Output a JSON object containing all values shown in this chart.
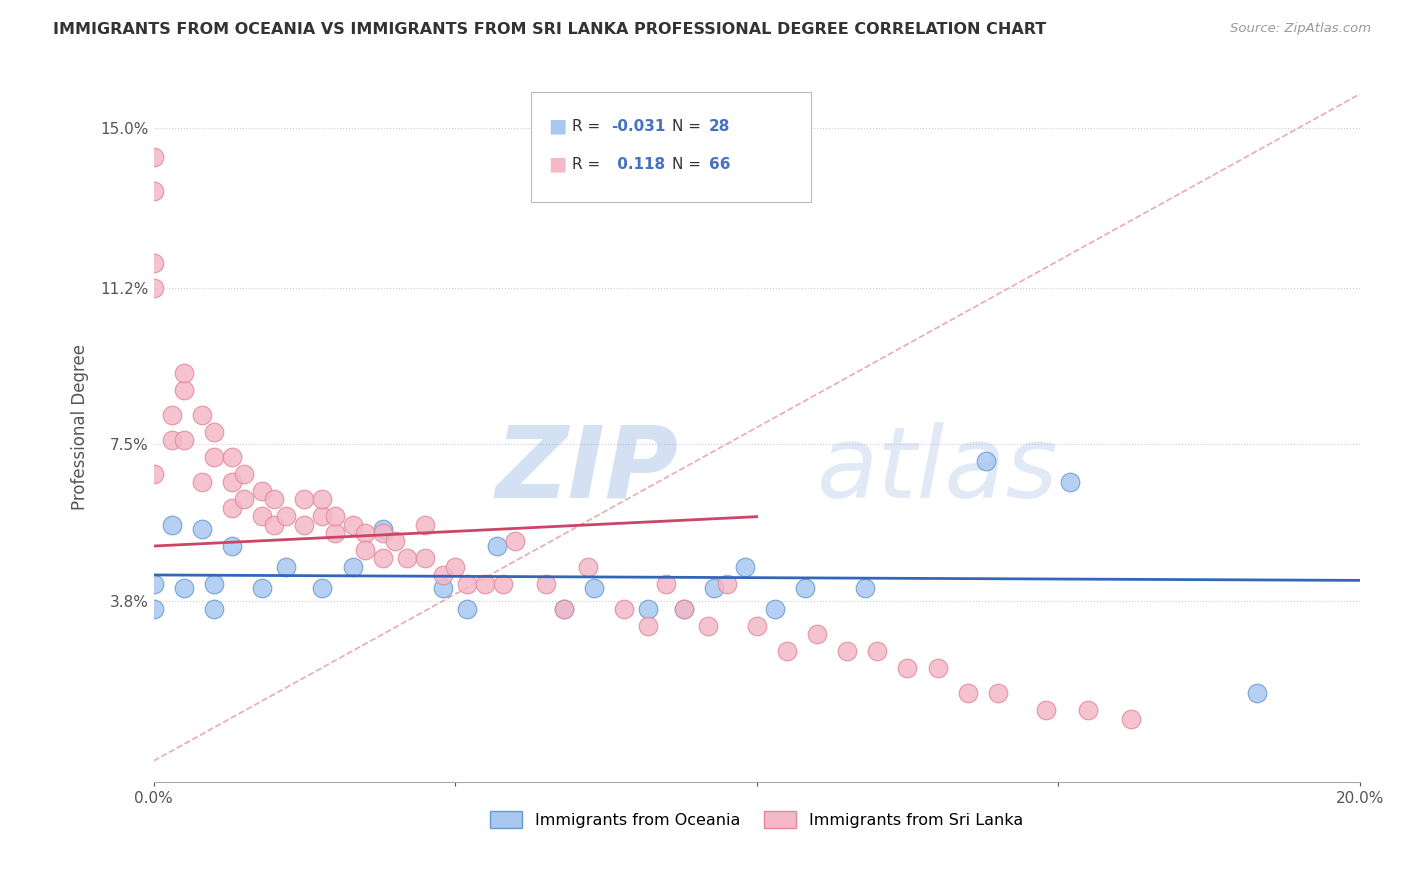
{
  "title": "IMMIGRANTS FROM OCEANIA VS IMMIGRANTS FROM SRI LANKA PROFESSIONAL DEGREE CORRELATION CHART",
  "source": "Source: ZipAtlas.com",
  "ylabel": "Professional Degree",
  "watermark_zip": "ZIP",
  "watermark_atlas": "atlas",
  "xlim": [
    0.0,
    0.2
  ],
  "ylim": [
    -0.005,
    0.163
  ],
  "xticks": [
    0.0,
    0.05,
    0.1,
    0.15,
    0.2
  ],
  "xticklabels": [
    "0.0%",
    "",
    "",
    "",
    "20.0%"
  ],
  "yticks": [
    0.038,
    0.075,
    0.112,
    0.15
  ],
  "yticklabels": [
    "3.8%",
    "7.5%",
    "11.2%",
    "15.0%"
  ],
  "legend_R1": "-0.031",
  "legend_N1": "28",
  "legend_R2": "0.118",
  "legend_N2": "66",
  "color_oceania_fill": "#a8c8f0",
  "color_oceania_edge": "#6699cc",
  "color_sri_lanka_fill": "#f4b8c8",
  "color_sri_lanka_edge": "#e08898",
  "color_line_oceania": "#3366bb",
  "color_line_sri_lanka": "#cc4466",
  "color_dashed_line": "#e8a0b0",
  "oceania_x": [
    0.0,
    0.0,
    0.003,
    0.005,
    0.008,
    0.01,
    0.01,
    0.013,
    0.018,
    0.022,
    0.028,
    0.033,
    0.038,
    0.048,
    0.052,
    0.057,
    0.068,
    0.073,
    0.082,
    0.088,
    0.093,
    0.098,
    0.103,
    0.108,
    0.118,
    0.138,
    0.152,
    0.183
  ],
  "oceania_y": [
    0.042,
    0.036,
    0.056,
    0.041,
    0.055,
    0.042,
    0.036,
    0.051,
    0.041,
    0.046,
    0.041,
    0.046,
    0.055,
    0.041,
    0.036,
    0.051,
    0.036,
    0.041,
    0.036,
    0.036,
    0.041,
    0.046,
    0.036,
    0.041,
    0.041,
    0.071,
    0.066,
    0.016
  ],
  "srilanka_x": [
    0.0,
    0.0,
    0.0,
    0.0,
    0.0,
    0.003,
    0.003,
    0.005,
    0.005,
    0.005,
    0.008,
    0.008,
    0.01,
    0.01,
    0.013,
    0.013,
    0.013,
    0.015,
    0.015,
    0.018,
    0.018,
    0.02,
    0.02,
    0.022,
    0.025,
    0.025,
    0.028,
    0.028,
    0.03,
    0.03,
    0.033,
    0.035,
    0.035,
    0.038,
    0.038,
    0.04,
    0.042,
    0.045,
    0.045,
    0.048,
    0.05,
    0.052,
    0.055,
    0.058,
    0.06,
    0.065,
    0.068,
    0.072,
    0.078,
    0.082,
    0.085,
    0.088,
    0.092,
    0.095,
    0.1,
    0.105,
    0.11,
    0.115,
    0.12,
    0.125,
    0.13,
    0.135,
    0.14,
    0.148,
    0.155,
    0.162
  ],
  "srilanka_y": [
    0.135,
    0.143,
    0.112,
    0.118,
    0.068,
    0.082,
    0.076,
    0.088,
    0.092,
    0.076,
    0.082,
    0.066,
    0.072,
    0.078,
    0.072,
    0.066,
    0.06,
    0.068,
    0.062,
    0.064,
    0.058,
    0.062,
    0.056,
    0.058,
    0.062,
    0.056,
    0.058,
    0.062,
    0.054,
    0.058,
    0.056,
    0.054,
    0.05,
    0.054,
    0.048,
    0.052,
    0.048,
    0.048,
    0.056,
    0.044,
    0.046,
    0.042,
    0.042,
    0.042,
    0.052,
    0.042,
    0.036,
    0.046,
    0.036,
    0.032,
    0.042,
    0.036,
    0.032,
    0.042,
    0.032,
    0.026,
    0.03,
    0.026,
    0.026,
    0.022,
    0.022,
    0.016,
    0.016,
    0.012,
    0.012,
    0.01
  ]
}
